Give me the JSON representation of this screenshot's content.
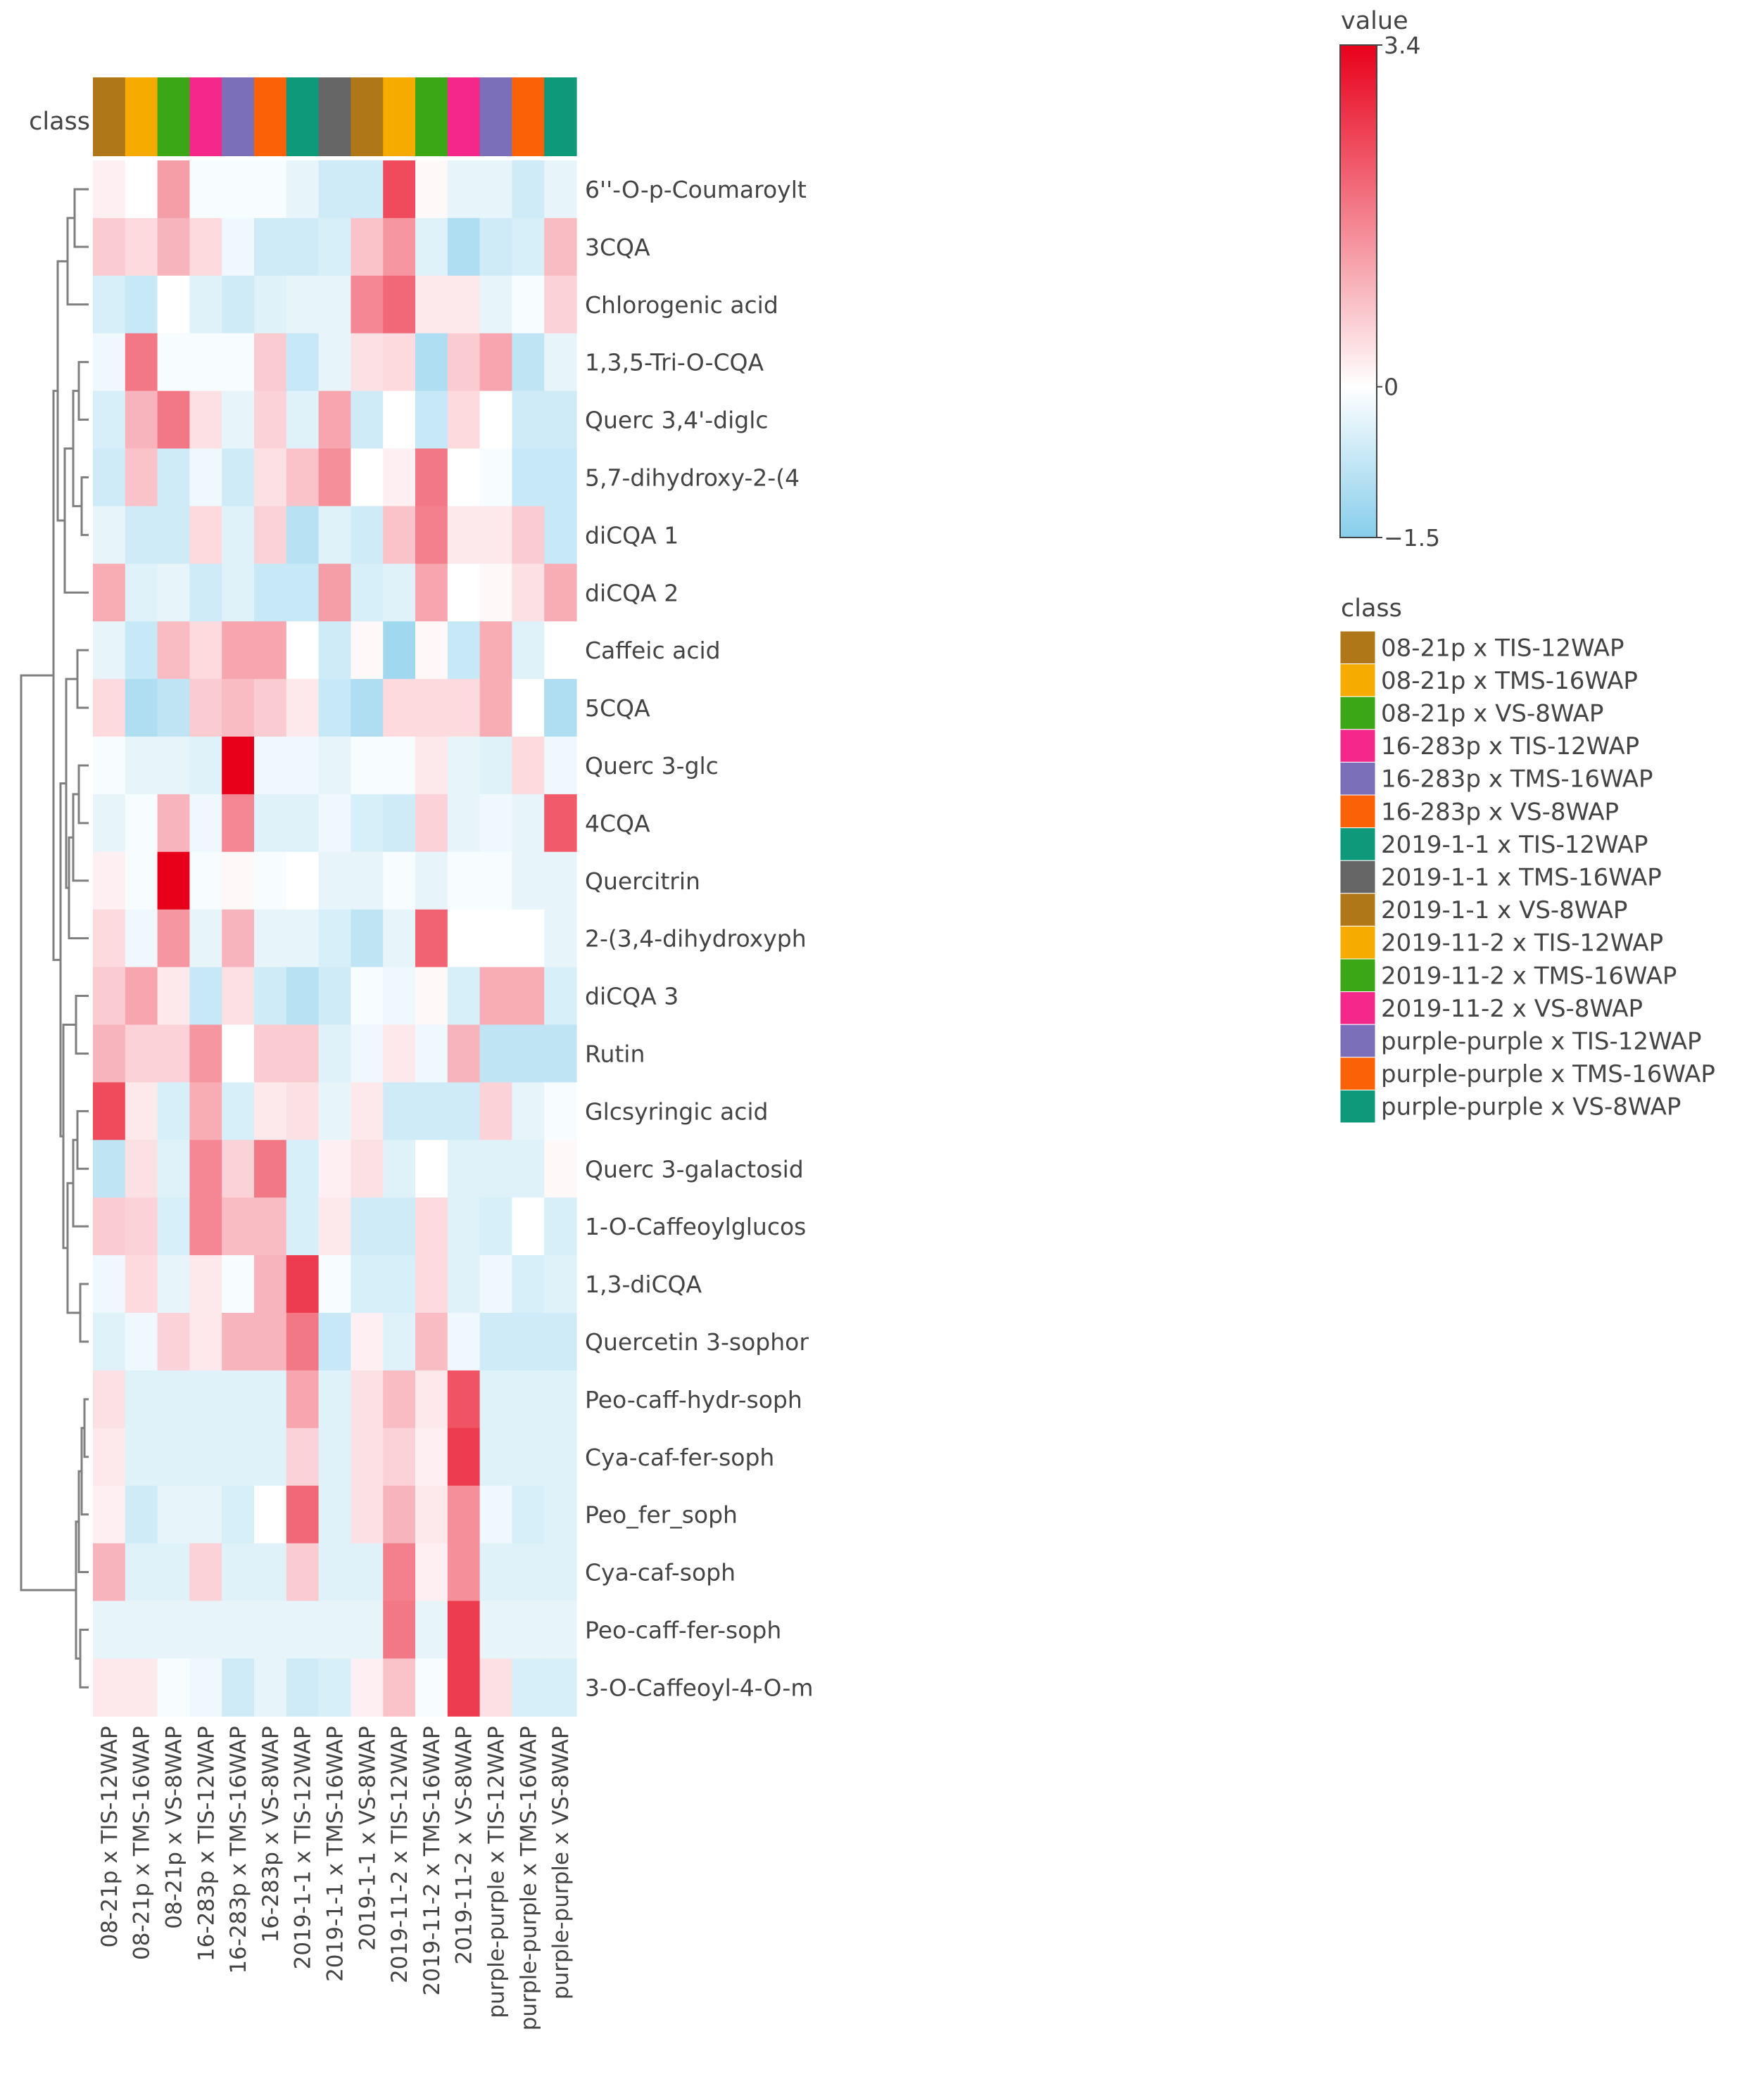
{
  "chart_data": {
    "type": "heatmap",
    "title": "",
    "class_axis_label": "class",
    "columns": [
      "08-21p x TIS-12WAP",
      "08-21p x TMS-16WAP",
      "08-21p x VS-8WAP",
      "16-283p x TIS-12WAP",
      "16-283p x TMS-16WAP",
      "16-283p x VS-8WAP",
      "2019-1-1 x TIS-12WAP",
      "2019-1-1 x TMS-16WAP",
      "2019-1-1 x VS-8WAP",
      "2019-11-2 x TIS-12WAP",
      "2019-11-2 x TMS-16WAP",
      "2019-11-2 x VS-8WAP",
      "purple-purple x TIS-12WAP",
      "purple-purple x TMS-16WAP",
      "purple-purple x VS-8WAP"
    ],
    "column_colors": [
      "#b07719",
      "#f5ab00",
      "#3ba717",
      "#f4288a",
      "#7c6fba",
      "#fb6208",
      "#0e9a7a",
      "#666666",
      "#b07719",
      "#f5ab00",
      "#3ba717",
      "#f4288a",
      "#7c6fba",
      "#fb6208",
      "#0e9a7a"
    ],
    "rows": [
      "6''-O-p-Coumaroylt",
      "3CQA",
      "Chlorogenic acid",
      "1,3,5-Tri-O-CQA",
      "Querc 3,4'-diglc",
      "5,7-dihydroxy-2-(4",
      "diCQA 1",
      "diCQA 2",
      "Caffeic acid",
      "5CQA",
      "Querc 3-glc",
      "4CQA",
      "Quercitrin",
      "2-(3,4-dihydroxyph",
      "diCQA 3",
      "Rutin",
      "Glcsyringic acid",
      "Querc 3-galactosid",
      "1-O-Caffeoylglucos",
      "1,3-diCQA",
      "Quercetin 3-sophor",
      "Peo-caff-hydr-soph",
      "Cya-caf-fer-soph",
      "Peo_fer_soph",
      "Cya-caf-soph",
      "Peo-caff-fer-soph",
      "3-O-Caffeoyl-4-O-m"
    ],
    "values": [
      [
        0.2,
        0.0,
        1.3,
        -0.1,
        -0.1,
        -0.1,
        -0.3,
        -0.6,
        -0.6,
        2.4,
        0.1,
        -0.3,
        -0.3,
        -0.6,
        -0.3
      ],
      [
        0.7,
        0.5,
        1.0,
        0.5,
        -0.2,
        -0.6,
        -0.6,
        -0.5,
        0.8,
        1.4,
        -0.4,
        -1.0,
        -0.6,
        -0.5,
        0.9
      ],
      [
        -0.5,
        -0.7,
        0.0,
        -0.4,
        -0.6,
        -0.4,
        -0.3,
        -0.3,
        1.6,
        2.0,
        0.3,
        0.3,
        -0.3,
        -0.1,
        0.6
      ],
      [
        -0.2,
        1.8,
        -0.1,
        -0.1,
        -0.1,
        0.7,
        -0.7,
        -0.3,
        0.4,
        0.5,
        -1.0,
        0.7,
        1.2,
        -0.8,
        -0.3
      ],
      [
        -0.5,
        1.0,
        1.8,
        0.4,
        -0.3,
        0.6,
        -0.4,
        1.2,
        -0.6,
        0.0,
        -0.7,
        0.5,
        0.0,
        -0.6,
        -0.6
      ],
      [
        -0.6,
        0.8,
        -0.6,
        -0.2,
        -0.6,
        0.4,
        0.8,
        1.5,
        0.0,
        0.2,
        1.8,
        0.0,
        -0.1,
        -0.7,
        -0.7
      ],
      [
        -0.3,
        -0.6,
        -0.6,
        0.5,
        -0.4,
        0.6,
        -0.9,
        -0.4,
        -0.6,
        0.8,
        1.7,
        0.3,
        0.3,
        0.7,
        -0.7
      ],
      [
        1.1,
        -0.4,
        -0.3,
        -0.6,
        -0.4,
        -0.7,
        -0.7,
        1.3,
        -0.5,
        -0.4,
        1.2,
        0.0,
        0.1,
        0.4,
        1.1
      ],
      [
        -0.3,
        -0.7,
        0.9,
        0.5,
        1.2,
        1.2,
        0.0,
        -0.6,
        0.1,
        -1.2,
        0.1,
        -0.7,
        1.1,
        -0.4,
        0.0
      ],
      [
        0.5,
        -1.0,
        -0.8,
        0.7,
        0.9,
        0.7,
        0.3,
        -0.7,
        -1.0,
        0.5,
        0.5,
        0.5,
        1.1,
        0.0,
        -1.0
      ],
      [
        -0.1,
        -0.3,
        -0.3,
        -0.4,
        3.4,
        -0.2,
        -0.2,
        -0.3,
        -0.1,
        -0.1,
        0.3,
        -0.3,
        -0.4,
        0.5,
        -0.2
      ],
      [
        -0.3,
        -0.1,
        1.0,
        -0.2,
        1.6,
        -0.4,
        -0.4,
        -0.2,
        -0.5,
        -0.6,
        0.6,
        -0.3,
        -0.2,
        -0.3,
        2.2
      ],
      [
        0.2,
        -0.1,
        3.4,
        -0.1,
        0.1,
        -0.1,
        0.0,
        -0.3,
        -0.3,
        -0.1,
        -0.3,
        -0.1,
        -0.1,
        -0.3,
        -0.3
      ],
      [
        0.5,
        -0.2,
        1.4,
        -0.3,
        1.0,
        -0.3,
        -0.3,
        -0.5,
        -0.8,
        -0.3,
        2.1,
        0.0,
        0.0,
        0.0,
        -0.3
      ],
      [
        0.7,
        1.2,
        0.3,
        -0.7,
        0.4,
        -0.6,
        -0.9,
        -0.6,
        -0.1,
        -0.2,
        0.1,
        -0.5,
        1.1,
        1.1,
        -0.5
      ],
      [
        1.0,
        0.6,
        0.6,
        1.4,
        0.0,
        0.7,
        0.7,
        -0.4,
        -0.2,
        0.3,
        -0.2,
        1.0,
        -0.8,
        -0.8,
        -0.8
      ],
      [
        2.4,
        0.3,
        -0.5,
        1.1,
        -0.5,
        0.3,
        0.4,
        -0.3,
        0.3,
        -0.6,
        -0.6,
        -0.6,
        0.6,
        -0.3,
        -0.1
      ],
      [
        -0.8,
        0.4,
        -0.4,
        1.6,
        0.6,
        1.8,
        -0.5,
        0.2,
        0.4,
        -0.4,
        0.0,
        -0.4,
        -0.4,
        -0.4,
        0.1
      ],
      [
        0.7,
        0.6,
        -0.5,
        1.6,
        0.9,
        0.9,
        -0.5,
        0.3,
        -0.6,
        -0.6,
        0.5,
        -0.4,
        -0.5,
        0.0,
        -0.5
      ],
      [
        -0.2,
        0.5,
        -0.3,
        0.3,
        -0.1,
        1.0,
        2.6,
        -0.1,
        -0.5,
        -0.5,
        0.5,
        -0.4,
        -0.2,
        -0.5,
        -0.4
      ],
      [
        -0.4,
        -0.2,
        0.6,
        0.3,
        1.0,
        1.0,
        1.8,
        -0.7,
        0.2,
        -0.4,
        0.9,
        -0.2,
        -0.6,
        -0.6,
        -0.6
      ],
      [
        0.4,
        -0.4,
        -0.4,
        -0.4,
        -0.4,
        -0.4,
        1.2,
        -0.4,
        0.4,
        0.9,
        0.3,
        2.3,
        -0.4,
        -0.4,
        -0.4
      ],
      [
        0.3,
        -0.4,
        -0.4,
        -0.4,
        -0.4,
        -0.4,
        0.6,
        -0.4,
        0.4,
        0.6,
        0.2,
        2.6,
        -0.4,
        -0.4,
        -0.4
      ],
      [
        0.2,
        -0.6,
        -0.3,
        -0.3,
        -0.5,
        0.0,
        2.0,
        -0.4,
        0.4,
        1.0,
        0.3,
        1.5,
        -0.2,
        -0.5,
        -0.4
      ],
      [
        1.0,
        -0.4,
        -0.4,
        0.6,
        -0.4,
        -0.4,
        0.7,
        -0.4,
        -0.4,
        1.7,
        0.2,
        1.5,
        -0.4,
        -0.4,
        -0.4
      ],
      [
        -0.3,
        -0.3,
        -0.3,
        -0.3,
        -0.3,
        -0.3,
        -0.3,
        -0.3,
        -0.3,
        1.8,
        -0.3,
        2.6,
        -0.3,
        -0.3,
        -0.3
      ],
      [
        0.3,
        0.3,
        -0.1,
        -0.2,
        -0.6,
        -0.3,
        -0.6,
        -0.5,
        0.2,
        0.8,
        -0.1,
        2.6,
        0.4,
        -0.5,
        -0.5
      ]
    ],
    "colorscale": {
      "title": "value",
      "min": -1.5,
      "mid": 0,
      "max": 3.4,
      "tick_labels": [
        "3.4",
        "0",
        "−1.5"
      ],
      "colors": {
        "low": "#87ceeb",
        "mid": "#ffffff",
        "high": "#e8001a"
      }
    },
    "legend": {
      "title": "class",
      "placement": "right",
      "items": [
        {
          "label": "08-21p x TIS-12WAP",
          "color": "#b07719"
        },
        {
          "label": "08-21p x TMS-16WAP",
          "color": "#f5ab00"
        },
        {
          "label": "08-21p x VS-8WAP",
          "color": "#3ba717"
        },
        {
          "label": "16-283p x TIS-12WAP",
          "color": "#f4288a"
        },
        {
          "label": "16-283p x TMS-16WAP",
          "color": "#7c6fba"
        },
        {
          "label": "16-283p x VS-8WAP",
          "color": "#fb6208"
        },
        {
          "label": "2019-1-1 x TIS-12WAP",
          "color": "#0e9a7a"
        },
        {
          "label": "2019-1-1 x TMS-16WAP",
          "color": "#666666"
        },
        {
          "label": "2019-1-1 x VS-8WAP",
          "color": "#b07719"
        },
        {
          "label": "2019-11-2 x TIS-12WAP",
          "color": "#f5ab00"
        },
        {
          "label": "2019-11-2 x TMS-16WAP",
          "color": "#3ba717"
        },
        {
          "label": "2019-11-2 x VS-8WAP",
          "color": "#f4288a"
        },
        {
          "label": "purple-purple x TIS-12WAP",
          "color": "#7c6fba"
        },
        {
          "label": "purple-purple x TMS-16WAP",
          "color": "#fb6208"
        },
        {
          "label": "purple-purple x VS-8WAP",
          "color": "#0e9a7a"
        }
      ]
    },
    "row_dendrogram": true,
    "dendrogram_color": "#7f7f7f"
  }
}
